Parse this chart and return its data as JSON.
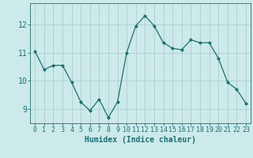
{
  "x": [
    0,
    1,
    2,
    3,
    4,
    5,
    6,
    7,
    8,
    9,
    10,
    11,
    12,
    13,
    14,
    15,
    16,
    17,
    18,
    19,
    20,
    21,
    22,
    23
  ],
  "y": [
    11.05,
    10.4,
    10.55,
    10.55,
    9.95,
    9.25,
    8.95,
    9.35,
    8.7,
    9.25,
    11.0,
    11.95,
    12.3,
    11.95,
    11.35,
    11.15,
    11.1,
    11.45,
    11.35,
    11.35,
    10.8,
    9.95,
    9.7,
    9.2
  ],
  "line_color": "#1a7070",
  "marker": "D",
  "marker_size": 2,
  "bg_color": "#cceaea",
  "grid_color": "#aad4d4",
  "xlabel": "Humidex (Indice chaleur)",
  "yticks": [
    9,
    10,
    11,
    12
  ],
  "xtick_labels": [
    "0",
    "1",
    "2",
    "3",
    "4",
    "5",
    "6",
    "7",
    "8",
    "9",
    "10",
    "11",
    "12",
    "13",
    "14",
    "15",
    "16",
    "17",
    "18",
    "19",
    "20",
    "21",
    "22",
    "23"
  ],
  "ylim": [
    8.5,
    12.75
  ],
  "xlim": [
    -0.5,
    23.5
  ],
  "tick_color": "#1a7070",
  "label_color": "#1a7070",
  "xlabel_fontsize": 7,
  "tick_fontsize": 6,
  "linewidth": 0.9
}
